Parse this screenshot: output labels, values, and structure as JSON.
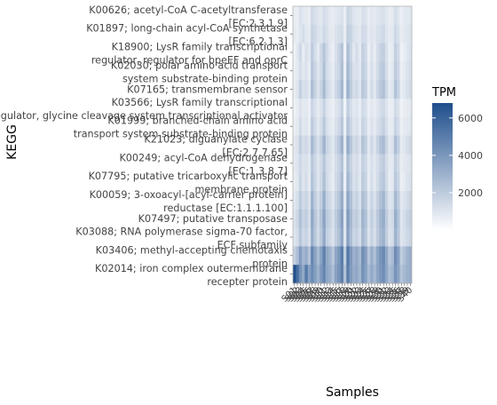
{
  "chart_data": {
    "type": "heatmap",
    "xlabel": "Samples",
    "ylabel": "KEGG",
    "legend": {
      "title": "TPM",
      "position": "right",
      "ticks": [
        2000,
        4000,
        6000
      ],
      "range": [
        0,
        6800
      ],
      "color_low": "#ffffff",
      "color_high": "#1f4e8c"
    },
    "y_categories": [
      "K00626; acetyl-CoA C-acetyltransferase [EC:2.3.1.9]",
      "K01897; long-chain acyl-CoA synthetase [EC:6.2.1.3]",
      "K18900; LysR family transcriptional regulator, regulator for bpeEF and oprC",
      "K02030; polar amino acid transport system substrate-binding protein",
      "K07165; transmembrane sensor",
      "K03566; LysR family transcriptional regulator, glycine cleavage system transcriptional activator",
      "K01999; branched-chain amino acid transport system substrate-binding protein",
      "K21023; diguanylate cyclase [EC:2.7.7.65]",
      "K00249; acyl-CoA dehydrogenase [EC:1.3.8.7]",
      "K07795; putative tricarboxylic transport membrane protein",
      "K00059; 3-oxoacyl-[acyl-carrier protein] reductase [EC:1.1.1.100]",
      "K07497; putative transposase",
      "K03088; RNA polymerase sigma-70 factor, ECF subfamily",
      "K03406; methyl-accepting chemotaxis protein",
      "K02014; iron complex outermembrane recepter protein"
    ],
    "x_categories": [
      "S01",
      "S02",
      "S03",
      "S04",
      "S05",
      "S06",
      "S07",
      "S08",
      "S09",
      "S10",
      "S11",
      "S12",
      "S13",
      "S14",
      "S15",
      "S16",
      "S17",
      "S18",
      "S19",
      "S20",
      "S21",
      "S22",
      "S23",
      "S24",
      "S25",
      "S26",
      "S27",
      "S28",
      "S29",
      "S30",
      "S31",
      "S32",
      "S33",
      "S34",
      "S35",
      "S36",
      "S37",
      "S38",
      "S39",
      "S40"
    ],
    "values": [
      [
        700,
        600,
        1100,
        900,
        800,
        700,
        1500,
        1200,
        1000,
        900,
        1300,
        1100,
        800,
        700,
        900,
        1000,
        1200,
        600,
        1600,
        1400,
        1000,
        900,
        800,
        1200,
        1100,
        700,
        900,
        800,
        1000,
        1100,
        1200,
        900,
        700,
        800,
        1300,
        1000,
        600,
        800,
        900,
        1000
      ],
      [
        800,
        700,
        1000,
        1300,
        900,
        800,
        1700,
        1500,
        1100,
        1000,
        1500,
        1200,
        900,
        800,
        1100,
        1300,
        1400,
        700,
        1900,
        1700,
        1200,
        1000,
        900,
        1400,
        1300,
        800,
        1000,
        900,
        1200,
        1300,
        1500,
        1000,
        800,
        900,
        1500,
        1200,
        700,
        900,
        1000,
        1100
      ],
      [
        500,
        900,
        1500,
        700,
        1200,
        900,
        2000,
        1300,
        800,
        1500,
        2200,
        1400,
        900,
        600,
        1200,
        1700,
        2300,
        500,
        2500,
        1600,
        900,
        1300,
        800,
        1800,
        1500,
        600,
        1100,
        700,
        1300,
        1700,
        1900,
        1200,
        600,
        800,
        1800,
        1400,
        500,
        700,
        1000,
        1200
      ],
      [
        600,
        800,
        1300,
        900,
        1100,
        700,
        2200,
        1600,
        1000,
        1400,
        2400,
        1300,
        1000,
        700,
        1300,
        1600,
        2500,
        600,
        2700,
        1800,
        1100,
        1200,
        900,
        1900,
        1600,
        700,
        1200,
        800,
        1400,
        1900,
        2100,
        1300,
        700,
        900,
        2000,
        1500,
        600,
        800,
        1100,
        1300
      ],
      [
        700,
        1000,
        1800,
        1200,
        1300,
        900,
        2500,
        1700,
        1100,
        1700,
        2600,
        1500,
        1200,
        800,
        1500,
        1900,
        2800,
        700,
        3000,
        2000,
        1300,
        1500,
        1000,
        2100,
        1800,
        800,
        1400,
        900,
        1600,
        2100,
        2400,
        1500,
        800,
        1000,
        2300,
        1700,
        700,
        900,
        1200,
        1400
      ],
      [
        500,
        700,
        1100,
        800,
        900,
        600,
        1600,
        1200,
        800,
        1100,
        1700,
        1000,
        800,
        600,
        1000,
        1200,
        1800,
        500,
        1900,
        1300,
        900,
        1000,
        700,
        1400,
        1200,
        600,
        900,
        700,
        1000,
        1300,
        1500,
        1000,
        600,
        700,
        1400,
        1100,
        500,
        700,
        800,
        900
      ],
      [
        600,
        800,
        1400,
        900,
        1000,
        700,
        2000,
        1400,
        900,
        1300,
        2100,
        1200,
        900,
        700,
        1200,
        1500,
        2200,
        600,
        2300,
        1600,
        1000,
        1200,
        800,
        1700,
        1400,
        700,
        1100,
        800,
        1200,
        1500,
        1800,
        1200,
        700,
        800,
        1700,
        1300,
        600,
        800,
        900,
        1000
      ],
      [
        900,
        1100,
        1900,
        1300,
        1500,
        1100,
        2700,
        1800,
        1200,
        1800,
        2900,
        1600,
        1300,
        900,
        1600,
        2100,
        3000,
        800,
        3200,
        2200,
        1400,
        1600,
        1100,
        2300,
        1900,
        900,
        1500,
        1000,
        1700,
        2300,
        2600,
        1600,
        900,
        1100,
        2500,
        1800,
        800,
        1000,
        1300,
        1500
      ],
      [
        800,
        1000,
        1500,
        1100,
        1200,
        900,
        2100,
        1500,
        1000,
        1400,
        2200,
        1300,
        1100,
        800,
        1300,
        1700,
        2300,
        700,
        2500,
        1700,
        1100,
        1300,
        900,
        1800,
        1500,
        800,
        1200,
        900,
        1300,
        1700,
        2000,
        1300,
        800,
        900,
        1900,
        1400,
        700,
        900,
        1000,
        1100
      ],
      [
        700,
        900,
        1600,
        1000,
        1300,
        800,
        2300,
        1600,
        1000,
        1500,
        2400,
        1400,
        1000,
        700,
        1400,
        1800,
        2600,
        600,
        2800,
        1900,
        1200,
        1400,
        900,
        2000,
        1700,
        700,
        1300,
        800,
        1400,
        1900,
        2200,
        1400,
        700,
        900,
        2100,
        1600,
        600,
        800,
        1100,
        1200
      ],
      [
        900,
        1200,
        2000,
        1400,
        1600,
        1100,
        2900,
        1900,
        1300,
        1900,
        3100,
        1700,
        1400,
        1000,
        1700,
        2200,
        3200,
        900,
        3400,
        2400,
        1500,
        1700,
        1200,
        2500,
        2100,
        1000,
        1600,
        1100,
        1800,
        2400,
        2800,
        1700,
        1000,
        1200,
        2700,
        2000,
        900,
        1100,
        1400,
        1600
      ],
      [
        1100,
        1500,
        2400,
        1700,
        1900,
        1300,
        3300,
        2200,
        1500,
        2300,
        3500,
        2000,
        1700,
        1200,
        2000,
        2600,
        3600,
        1000,
        3800,
        2700,
        1800,
        2000,
        1400,
        2900,
        2400,
        1200,
        1900,
        1300,
        2100,
        2800,
        3200,
        2000,
        1200,
        1400,
        3100,
        2300,
        1000,
        1300,
        1700,
        1900
      ],
      [
        1000,
        1300,
        2200,
        1500,
        1700,
        1200,
        3100,
        2100,
        1400,
        2100,
        3300,
        1800,
        1500,
        1100,
        1900,
        2400,
        3400,
        1000,
        3600,
        2500,
        1600,
        1800,
        1300,
        2700,
        2200,
        1100,
        1700,
        1200,
        2000,
        2600,
        3000,
        1900,
        1100,
        1300,
        2900,
        2200,
        1000,
        1200,
        1500,
        1700
      ],
      [
        1800,
        2500,
        3800,
        2800,
        3200,
        2300,
        4600,
        3500,
        2600,
        3600,
        4800,
        3300,
        2900,
        2100,
        3400,
        4000,
        5000,
        1900,
        5200,
        3900,
        3000,
        3300,
        2600,
        4300,
        3700,
        2200,
        3100,
        2400,
        3500,
        4100,
        4500,
        3300,
        2200,
        2600,
        4400,
        3600,
        1900,
        2400,
        2900,
        3200
      ],
      [
        6800,
        5600,
        4200,
        3300,
        5100,
        3600,
        4400,
        3700,
        3000,
        3900,
        4600,
        3400,
        3100,
        2500,
        3600,
        4100,
        4900,
        2400,
        5000,
        3800,
        3200,
        3400,
        2800,
        4200,
        3600,
        2600,
        3300,
        2700,
        3500,
        4000,
        4300,
        3400,
        2500,
        2900,
        4100,
        3500,
        2300,
        2700,
        3000,
        3200
      ]
    ]
  }
}
